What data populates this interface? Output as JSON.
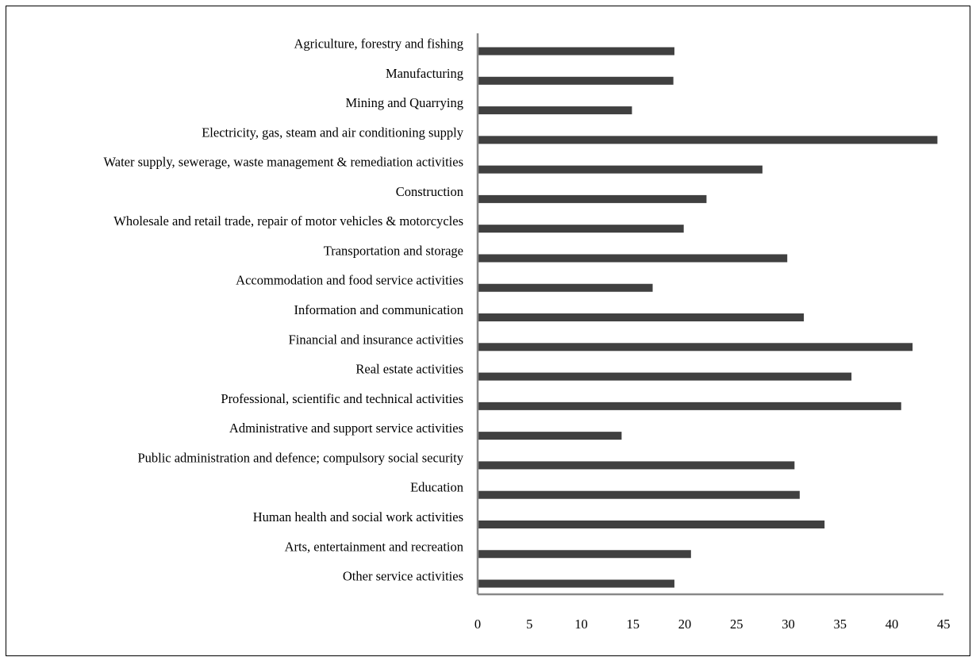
{
  "chart_data": {
    "type": "bar",
    "orientation": "horizontal",
    "title": "",
    "xlabel": "",
    "ylabel": "",
    "categories": [
      "Agriculture, forestry and fishing",
      "Manufacturing",
      "Mining and Quarrying",
      "Electricity, gas, steam and air conditioning supply",
      "Water supply, sewerage, waste management & remediation activities",
      "Construction",
      "Wholesale and retail trade, repair of motor vehicles & motorcycles",
      "Transportation and storage",
      "Accommodation and food service activities",
      "Information and communication",
      "Financial and insurance activities",
      "Real estate activities",
      "Professional, scientific and technical activities",
      "Administrative and support service activities",
      "Public administration and defence; compulsory social security",
      "Education",
      "Human health and social work activities",
      "Arts, entertainment and recreation",
      "Other service activities"
    ],
    "values": [
      19,
      18.9,
      14.9,
      44.4,
      27.5,
      22.1,
      19.9,
      29.9,
      16.9,
      31.5,
      42,
      36.1,
      40.9,
      13.9,
      30.6,
      31.1,
      33.5,
      20.6,
      19
    ],
    "xticks": [
      "0",
      "5",
      "10",
      "15",
      "20",
      "25",
      "30",
      "35",
      "40",
      "45"
    ],
    "xlim": [
      0,
      45
    ],
    "grid": false,
    "bar_color": "#404040",
    "axis_color": "#888888"
  }
}
